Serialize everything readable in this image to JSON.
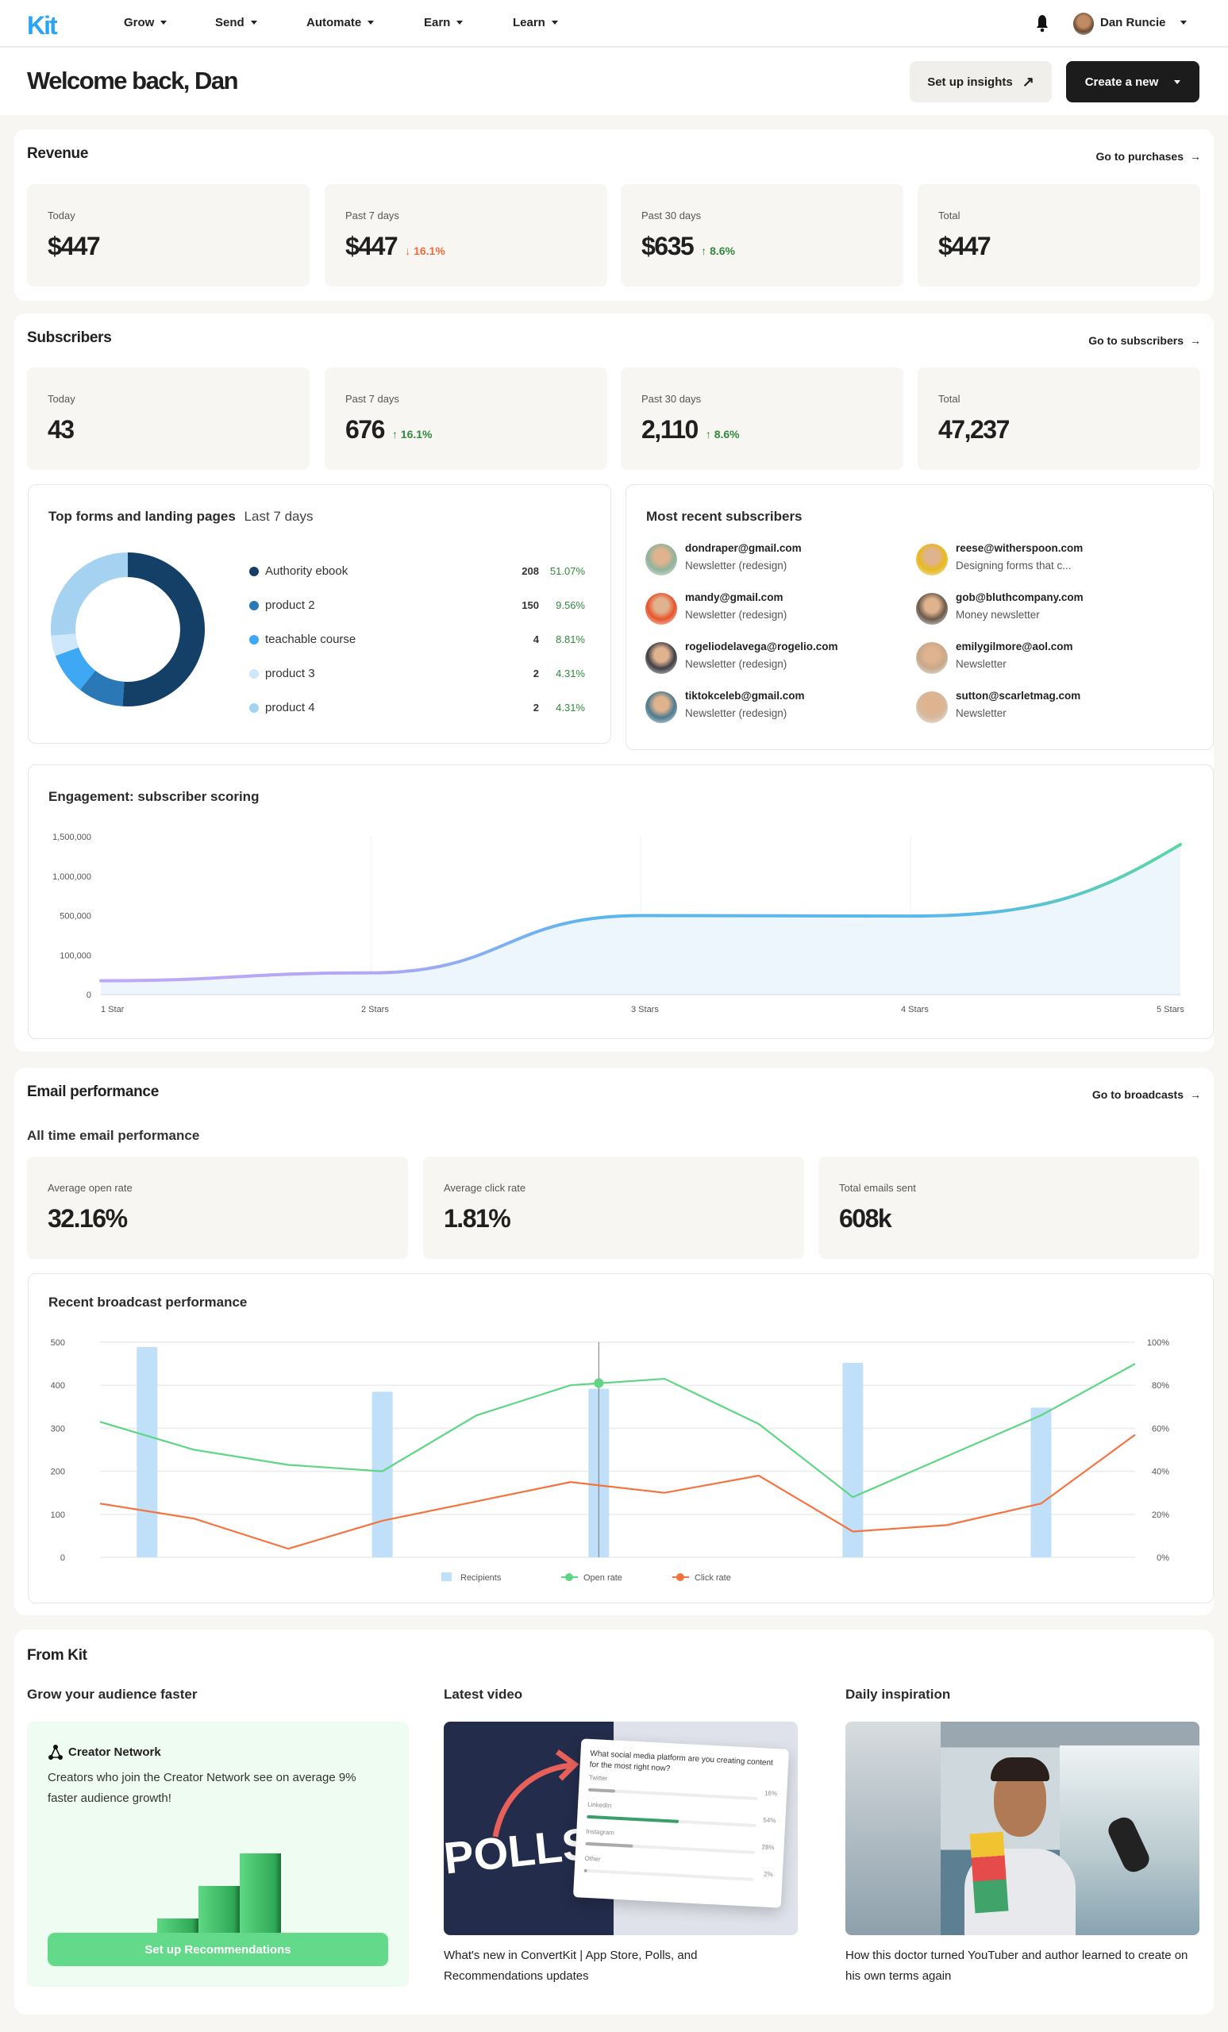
{
  "nav": {
    "logo": "Kit",
    "items": [
      "Grow",
      "Send",
      "Automate",
      "Earn",
      "Learn"
    ],
    "user_name": "Dan Runcie",
    "icons": {
      "notifications": "bell-icon",
      "avatar": "user-avatar"
    }
  },
  "header": {
    "title": "Welcome back, Dan",
    "insights_button": "Set up insights",
    "create_button": "Create a new"
  },
  "revenue": {
    "title": "Revenue",
    "link": "Go to purchases",
    "stats": [
      {
        "label": "Today",
        "value": "$447",
        "change": "",
        "dir": ""
      },
      {
        "label": "Past 7 days",
        "value": "$447",
        "change": "16.1%",
        "dir": "down"
      },
      {
        "label": "Past 30 days",
        "value": "$635",
        "change": "8.6%",
        "dir": "up"
      },
      {
        "label": "Total",
        "value": "$447",
        "change": "",
        "dir": ""
      }
    ]
  },
  "subscribers": {
    "title": "Subscribers",
    "link": "Go to subscribers",
    "stats": [
      {
        "label": "Today",
        "value": "43",
        "change": "",
        "dir": ""
      },
      {
        "label": "Past 7 days",
        "value": "676",
        "change": "16.1%",
        "dir": "up"
      },
      {
        "label": "Past 30 days",
        "value": "2,110",
        "change": "8.6%",
        "dir": "up"
      },
      {
        "label": "Total",
        "value": "47,237",
        "change": "",
        "dir": ""
      }
    ],
    "top_forms": {
      "title": "Top forms and landing pages",
      "period": "Last 7 days",
      "rows": [
        {
          "name": "Authority ebook",
          "count": "208",
          "pct": "51.07%",
          "color": "#143f66"
        },
        {
          "name": "product 2",
          "count": "150",
          "pct": "9.56%",
          "color": "#2a78b6"
        },
        {
          "name": "teachable course",
          "count": "4",
          "pct": "8.81%",
          "color": "#3ea8f4"
        },
        {
          "name": "product 3",
          "count": "2",
          "pct": "4.31%",
          "color": "#cfe7fa"
        },
        {
          "name": "product 4",
          "count": "2",
          "pct": "4.31%",
          "color": "#a6d2f2"
        }
      ]
    },
    "recent": {
      "title": "Most recent subscribers",
      "items": [
        {
          "email": "dondraper@gmail.com",
          "source": "Newsletter (redesign)",
          "color": "#8fb39a"
        },
        {
          "email": "reese@witherspoon.com",
          "source": "Designing forms that c...",
          "color": "#e8b91c"
        },
        {
          "email": "mandy@gmail.com",
          "source": "Newsletter (redesign)",
          "color": "#e8542a"
        },
        {
          "email": "gob@bluthcompany.com",
          "source": "Money newsletter",
          "color": "#6b5a4a"
        },
        {
          "email": "rogeliodelavega@rogelio.com",
          "source": "Newsletter (redesign)",
          "color": "#3f3f46"
        },
        {
          "email": "emilygilmore@aol.com",
          "source": "Newsletter",
          "color": "#c7a88a"
        },
        {
          "email": "tiktokceleb@gmail.com",
          "source": "Newsletter (redesign)",
          "color": "#4d7a8f"
        },
        {
          "email": "sutton@scarletmag.com",
          "source": "Newsletter",
          "color": "#d6b99c"
        }
      ]
    }
  },
  "chart_data": [
    {
      "type": "area",
      "title": "Engagement: subscriber scoring",
      "categories": [
        "1 Star",
        "2 Stars",
        "3 Stars",
        "4 Stars",
        "5 Stars"
      ],
      "values": [
        35000,
        55000,
        500000,
        495000,
        1400000
      ],
      "y_ticks": [
        "0",
        "100,000",
        "500,000",
        "1,000,000",
        "1,500,000"
      ],
      "y_tick_values": [
        0,
        100000,
        500000,
        1000000,
        1500000
      ],
      "ylim": [
        0,
        1500000
      ],
      "grid": "vertical"
    },
    {
      "type": "bar+line",
      "title": "Recent broadcast performance",
      "y_left_ticks": [
        "0",
        "100",
        "200",
        "300",
        "400",
        "500"
      ],
      "y_right_ticks": [
        "0%",
        "20%",
        "40%",
        "60%",
        "80%",
        "100%"
      ],
      "ylim_left": [
        0,
        500
      ],
      "ylim_right": [
        0,
        100
      ],
      "legend": [
        "Recipients",
        "Open rate",
        "Click rate"
      ],
      "legend_position": "bottom",
      "colors": {
        "recipients": "#bfe0f8",
        "open": "#5ed684",
        "click": "#f5733f"
      },
      "open_rate": [
        63,
        50,
        43,
        40,
        66,
        80,
        83,
        62,
        28,
        47,
        66,
        90
      ],
      "click_rate": [
        25,
        18,
        4,
        17,
        26,
        35,
        30,
        38,
        12,
        15,
        25,
        57
      ],
      "recipients": [
        489,
        385,
        392,
        452,
        348
      ],
      "recipient_positions": [
        0.5,
        3,
        5.3,
        8,
        10
      ],
      "highlight_index": 5.3,
      "highlight_open": 81
    }
  ],
  "email": {
    "title": "Email performance",
    "link": "Go to broadcasts",
    "subtitle": "All time email performance",
    "stats": [
      {
        "label": "Average open rate",
        "value": "32.16%"
      },
      {
        "label": "Average click rate",
        "value": "1.81%"
      },
      {
        "label": "Total emails sent",
        "value": "608k"
      }
    ]
  },
  "from_kit": {
    "title": "From Kit",
    "grow": {
      "heading": "Grow your audience faster",
      "card_title": "Creator Network",
      "body": "Creators who join the Creator Network see on average 9% faster audience growth!",
      "button": "Set up Recommendations"
    },
    "video": {
      "heading": "Latest video",
      "thumb_text": "POLLS",
      "poll_question": "What social media platform are you creating content for the most right now?",
      "poll_options": [
        {
          "label": "Twitter",
          "pct": "16%",
          "fill": 0.16
        },
        {
          "label": "LinkedIn",
          "pct": "54%",
          "fill": 0.54
        },
        {
          "label": "Instagram",
          "pct": "28%",
          "fill": 0.28
        },
        {
          "label": "Other",
          "pct": "2%",
          "fill": 0.02
        }
      ],
      "caption": "What's new in ConvertKit | App Store, Polls, and Recommendations updates"
    },
    "inspiration": {
      "heading": "Daily inspiration",
      "caption": "How this doctor turned YouTuber and author learned to create on his own terms again"
    }
  }
}
